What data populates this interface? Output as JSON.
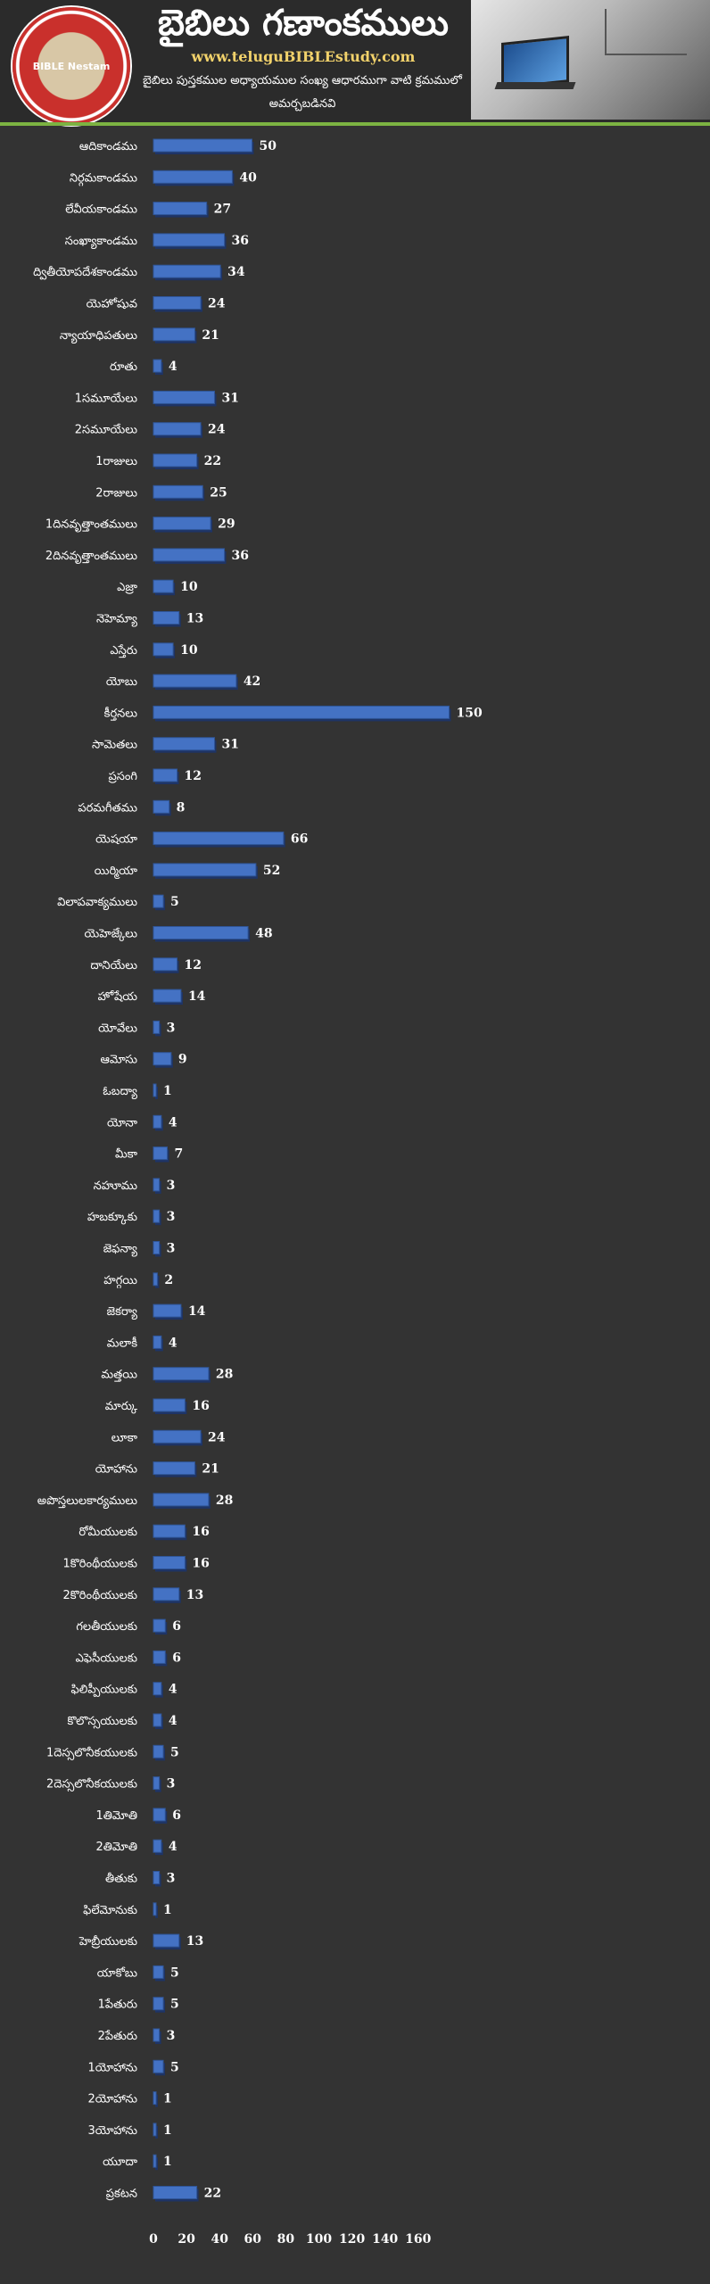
{
  "header": {
    "title": "బైబిలు గణాంకములు",
    "site": "www.teluguBIBLEstudy.com",
    "subtitle": "బైబిలు పుస్తకముల అధ్యాయముల సంఖ్య ఆధారముగా వాటి క్రమములో అమర్చబడినవి",
    "logo_text": "BIBLE Nestam"
  },
  "colors": {
    "background": "#333333",
    "bar": "#4472c4",
    "accent": "#7cb342",
    "site_text": "#f2d26b"
  },
  "chart_data": {
    "type": "bar",
    "orientation": "horizontal",
    "categories": [
      "ఆదికాండము",
      "నిర్గమకాండము",
      "లేవీయకాండము",
      "సంఖ్యాకాండము",
      "ద్వితీయోపదేశకాండము",
      "యెహోషువ",
      "న్యాయాధిపతులు",
      "రూతు",
      "1సమూయేలు",
      "2సమూయేలు",
      "1రాజులు",
      "2రాజులు",
      "1దినవృత్తాంతములు",
      "2దినవృత్తాంతములు",
      "ఎజ్రా",
      "నెహెమ్యా",
      "ఎస్తేరు",
      "యోబు",
      "కీర్తనలు",
      "సామెతలు",
      "ప్రసంగి",
      "పరమగీతము",
      "యెషయా",
      "యిర్మియా",
      "విలాపవాక్యములు",
      "యెహెజ్కేలు",
      "దానియేలు",
      "హోషేయ",
      "యోవేలు",
      "ఆమోసు",
      "ఓబద్యా",
      "యోనా",
      "మీకా",
      "నహూము",
      "హబక్కూకు",
      "జెఫన్యా",
      "హగ్గయి",
      "జెకర్యా",
      "మలాకీ",
      "మత్తయి",
      "మార్కు",
      "లూకా",
      "యోహాను",
      "అపొస్తలులకార్యములు",
      "రోమీయులకు",
      "1కొరింథీయులకు",
      "2కొరింథీయులకు",
      "గలతీయులకు",
      "ఎఫెసీయులకు",
      "ఫిలిప్పీయులకు",
      "కొలొస్సయులకు",
      "1దెస్సలొనీకయులకు",
      "2దెస్సలొనీకయులకు",
      "1తిమోతి",
      "2తిమోతి",
      "తీతుకు",
      "ఫిలేమోనుకు",
      "హెబ్రీయులకు",
      "యాకోబు",
      "1పేతురు",
      "2పేతురు",
      "1యోహాను",
      "2యోహాను",
      "3యోహాను",
      "యూదా",
      "ప్రకటన"
    ],
    "values": [
      50,
      40,
      27,
      36,
      34,
      24,
      21,
      4,
      31,
      24,
      22,
      25,
      29,
      36,
      10,
      13,
      10,
      42,
      150,
      31,
      12,
      8,
      66,
      52,
      5,
      48,
      12,
      14,
      3,
      9,
      1,
      4,
      7,
      3,
      3,
      3,
      2,
      14,
      4,
      28,
      16,
      24,
      21,
      28,
      16,
      16,
      13,
      6,
      6,
      4,
      4,
      5,
      3,
      6,
      4,
      3,
      1,
      13,
      5,
      5,
      3,
      5,
      1,
      1,
      1,
      22
    ],
    "xlim": [
      0,
      160
    ],
    "xticks": [
      "0",
      "20",
      "40",
      "60",
      "80",
      "100",
      "120",
      "140",
      "160"
    ],
    "data_labels": true,
    "grid": false,
    "legend": "none"
  }
}
